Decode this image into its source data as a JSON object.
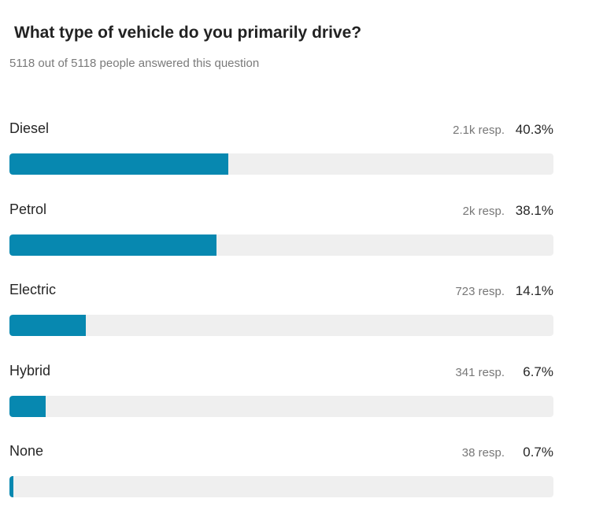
{
  "poll": {
    "question": "What type of vehicle do you primarily drive?",
    "answered_text": "5118 out of 5118 people answered this question",
    "bar_color": "#0788b0",
    "track_color": "#efefef",
    "options": [
      {
        "label": "Diesel",
        "responses": "2.1k resp.",
        "percent": "40.3%",
        "fraction": 0.403
      },
      {
        "label": "Petrol",
        "responses": "2k resp.",
        "percent": "38.1%",
        "fraction": 0.381
      },
      {
        "label": "Electric",
        "responses": "723 resp.",
        "percent": "14.1%",
        "fraction": 0.141
      },
      {
        "label": "Hybrid",
        "responses": "341 resp.",
        "percent": "6.7%",
        "fraction": 0.067
      },
      {
        "label": "None",
        "responses": "38 resp.",
        "percent": "0.7%",
        "fraction": 0.007
      }
    ]
  }
}
